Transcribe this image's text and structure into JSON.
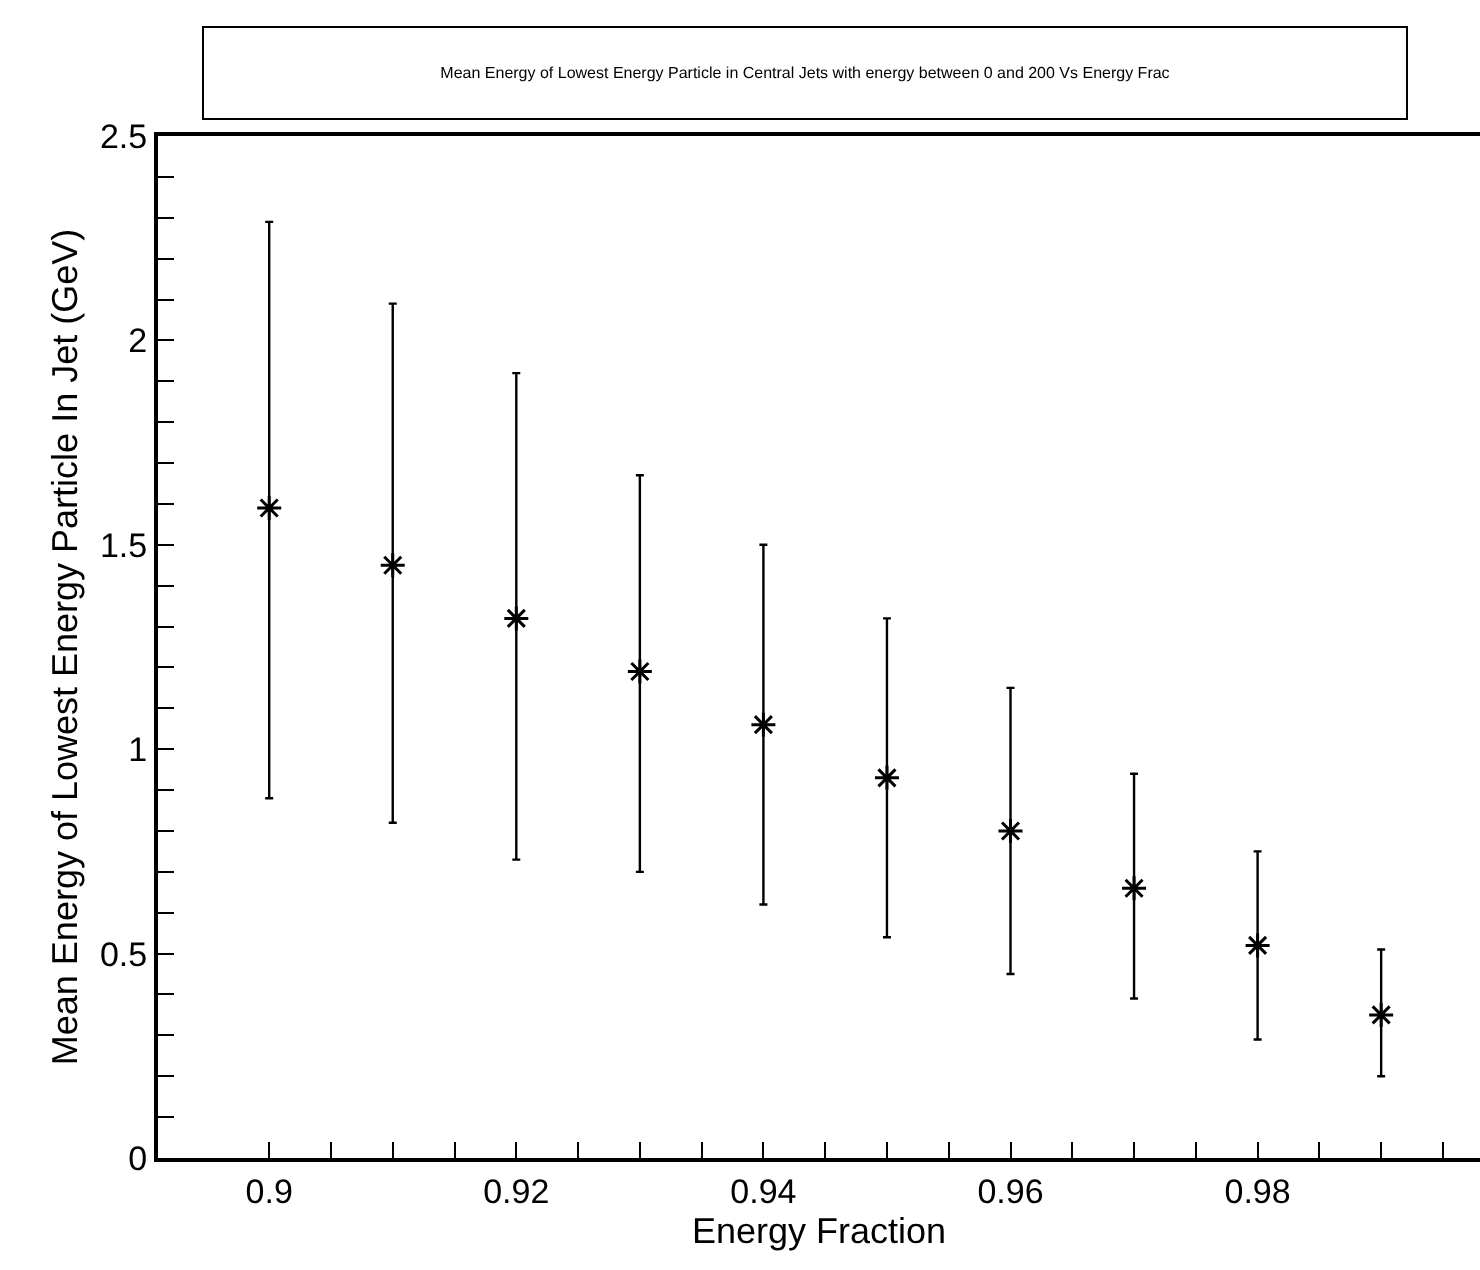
{
  "chart_data": {
    "type": "scatter",
    "title": "Mean Energy of Lowest Energy Particle in Central Jets with energy between 0 and 200 Vs Energy Frac",
    "xlabel": "Energy Fraction",
    "ylabel": "Mean Energy of Lowest Energy Particle In Jet (GeV)",
    "x": [
      0.9,
      0.91,
      0.92,
      0.93,
      0.94,
      0.95,
      0.96,
      0.97,
      0.98,
      0.99
    ],
    "series": [
      {
        "color": "#000000",
        "values": [
          1.59,
          1.45,
          1.32,
          1.19,
          1.06,
          0.93,
          0.8,
          0.66,
          0.52,
          0.35
        ],
        "errors": [
          [
            0.88,
            2.29
          ],
          [
            0.82,
            2.09
          ],
          [
            0.73,
            1.92
          ],
          [
            0.7,
            1.67
          ],
          [
            0.62,
            1.5
          ],
          [
            0.54,
            1.32
          ],
          [
            0.45,
            1.15
          ],
          [
            0.39,
            0.94
          ],
          [
            0.29,
            0.75
          ],
          [
            0.2,
            0.51
          ]
        ]
      }
    ],
    "marker": "cross",
    "grid": false,
    "xlim": [
      0.891,
      0.998
    ],
    "xticks": [
      0.9,
      {
        "value": 0.905,
        "label": null
      },
      {
        "value": 0.91,
        "label": null
      },
      {
        "value": 0.915,
        "label": null
      },
      0.92,
      {
        "value": 0.925,
        "label": null
      },
      {
        "value": 0.93,
        "label": null
      },
      {
        "value": 0.935,
        "label": null
      },
      0.94,
      {
        "value": 0.945,
        "label": null
      },
      {
        "value": 0.95,
        "label": null
      },
      {
        "value": 0.955,
        "label": null
      },
      0.96,
      {
        "value": 0.965,
        "label": null
      },
      {
        "value": 0.97,
        "label": null
      },
      {
        "value": 0.975,
        "label": null
      },
      0.98,
      {
        "value": 0.985,
        "label": null
      },
      {
        "value": 0.99,
        "label": null
      },
      {
        "value": 0.995,
        "label": null
      }
    ],
    "ylim": [
      0,
      2.5
    ],
    "yticks": [
      0,
      {
        "value": 0.1,
        "label": null
      },
      {
        "value": 0.2,
        "label": null
      },
      {
        "value": 0.3,
        "label": null
      },
      {
        "value": 0.4,
        "label": null
      },
      0.5,
      {
        "value": 0.6,
        "label": null
      },
      {
        "value": 0.7,
        "label": null
      },
      {
        "value": 0.8,
        "label": null
      },
      {
        "value": 0.9,
        "label": null
      },
      1,
      {
        "value": 1.1,
        "label": null
      },
      {
        "value": 1.2,
        "label": null
      },
      {
        "value": 1.3,
        "label": null
      },
      {
        "value": 1.4,
        "label": null
      },
      1.5,
      {
        "value": 1.6,
        "label": null
      },
      {
        "value": 1.7,
        "label": null
      },
      {
        "value": 1.8,
        "label": null
      },
      {
        "value": 1.9,
        "label": null
      },
      2,
      {
        "value": 2.1,
        "label": null
      },
      {
        "value": 2.2,
        "label": null
      },
      {
        "value": 2.3,
        "label": null
      },
      {
        "value": 2.4,
        "label": null
      },
      2.5
    ]
  }
}
